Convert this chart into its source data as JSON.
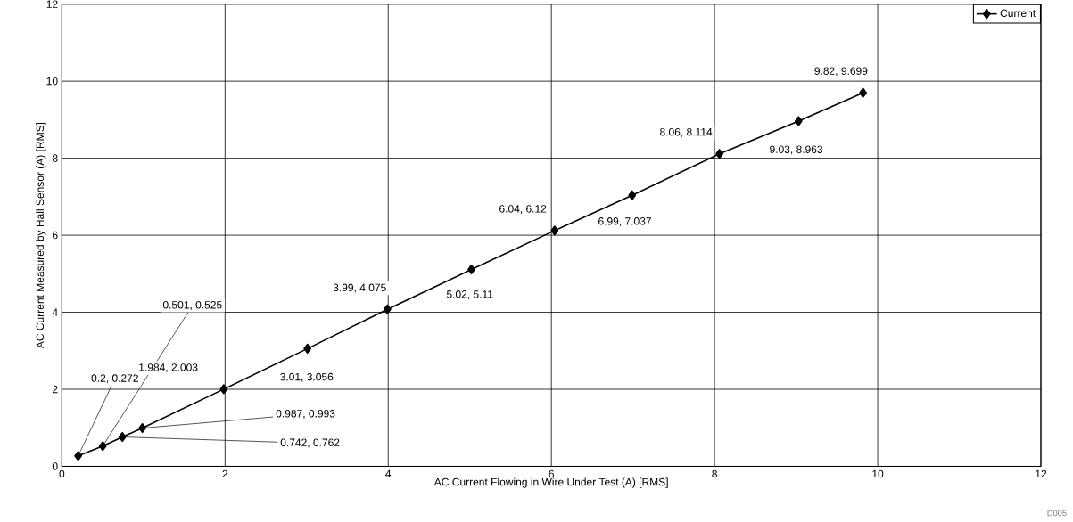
{
  "chart_data": {
    "type": "line",
    "xlabel": "AC Current Flowing in Wire Under Test (A) [RMS]",
    "ylabel": "AC Current Measured by Hall Sensor (A) [RMS]",
    "x": [
      0.2,
      0.501,
      0.742,
      0.987,
      1.984,
      3.01,
      3.99,
      5.02,
      6.04,
      6.99,
      8.06,
      9.03,
      9.82
    ],
    "series": [
      {
        "name": "Current",
        "color": "#000000",
        "values": [
          0.272,
          0.525,
          0.762,
          0.993,
          2.003,
          3.056,
          4.075,
          5.11,
          6.12,
          7.037,
          8.114,
          8.963,
          9.699
        ]
      }
    ],
    "xlim": [
      0,
      12
    ],
    "ylim": [
      0,
      12
    ],
    "xticks": [
      0,
      2,
      4,
      6,
      8,
      10,
      12
    ],
    "yticks": [
      0,
      2,
      4,
      6,
      8,
      10,
      12
    ],
    "grid": true,
    "legend": "top right",
    "marker": "diamond",
    "line_style": "solid",
    "annotations": [
      {
        "text": "0.2, 0.272",
        "x": 0.2,
        "y": 0.272
      },
      {
        "text": "0.501, 0.525",
        "x": 0.501,
        "y": 0.525
      },
      {
        "text": "0.742, 0.762",
        "x": 0.742,
        "y": 0.762
      },
      {
        "text": "0.987, 0.993",
        "x": 0.987,
        "y": 0.993
      },
      {
        "text": "1.984, 2.003",
        "x": 1.984,
        "y": 2.003
      },
      {
        "text": "3.01, 3.056",
        "x": 3.01,
        "y": 3.056
      },
      {
        "text": "3.99, 4.075",
        "x": 3.99,
        "y": 4.075
      },
      {
        "text": "5.02, 5.11",
        "x": 5.02,
        "y": 5.11
      },
      {
        "text": "6.04, 6.12",
        "x": 6.04,
        "y": 6.12
      },
      {
        "text": "6.99, 7.037",
        "x": 6.99,
        "y": 7.037
      },
      {
        "text": "8.06, 8.114",
        "x": 8.06,
        "y": 8.114
      },
      {
        "text": "9.03, 8.963",
        "x": 9.03,
        "y": 8.963
      },
      {
        "text": "9.82, 9.699",
        "x": 9.82,
        "y": 9.699
      },
      "D005"
    ]
  }
}
